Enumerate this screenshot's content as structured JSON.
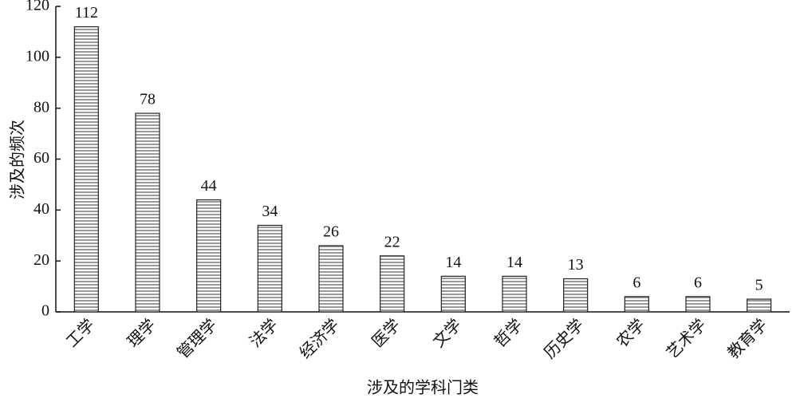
{
  "chart_data": {
    "type": "bar",
    "x_label": "涉及的学科门类",
    "y_label": "涉及的频次",
    "categories": [
      "工学",
      "理学",
      "管理学",
      "法学",
      "经济学",
      "医学",
      "文学",
      "哲学",
      "历史学",
      "农学",
      "艺术学",
      "教育学"
    ],
    "values": [
      112,
      78,
      44,
      34,
      26,
      22,
      14,
      14,
      13,
      6,
      6,
      5
    ],
    "ylim": [
      0,
      120
    ],
    "yticks": [
      0,
      20,
      40,
      60,
      80,
      100,
      120
    ],
    "color": "#9a9a9a",
    "grid": false
  }
}
